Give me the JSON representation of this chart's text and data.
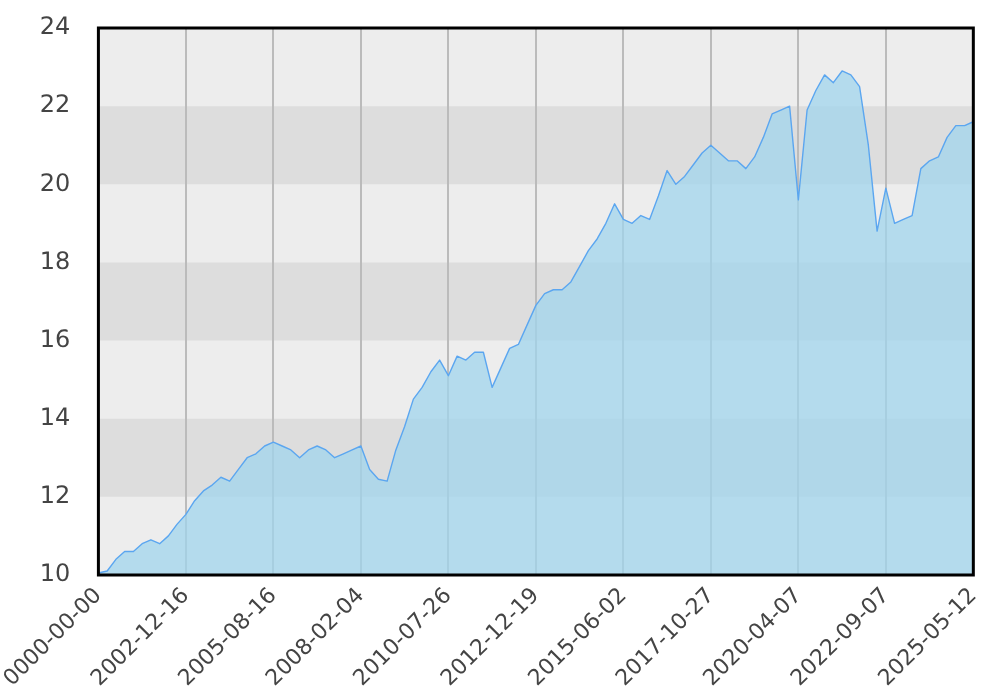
{
  "chart_data": {
    "type": "area",
    "categories": [
      "0000-00-00",
      null,
      null,
      null,
      null,
      null,
      null,
      null,
      null,
      null,
      "2002-12-16",
      null,
      null,
      null,
      null,
      null,
      null,
      null,
      null,
      null,
      "2005-08-16",
      null,
      null,
      null,
      null,
      null,
      null,
      null,
      null,
      null,
      "2008-02-04",
      null,
      null,
      null,
      null,
      null,
      null,
      null,
      null,
      null,
      "2010-07-26",
      null,
      null,
      null,
      null,
      null,
      null,
      null,
      null,
      null,
      "2012-12-19",
      null,
      null,
      null,
      null,
      null,
      null,
      null,
      null,
      null,
      "2015-06-02",
      null,
      null,
      null,
      null,
      null,
      null,
      null,
      null,
      null,
      "2017-10-27",
      null,
      null,
      null,
      null,
      null,
      null,
      null,
      null,
      null,
      "2020-04-07",
      null,
      null,
      null,
      null,
      null,
      null,
      null,
      null,
      null,
      "2022-09-07",
      null,
      null,
      null,
      null,
      null,
      null,
      null,
      null,
      null,
      "2025-05-12"
    ],
    "series": [
      {
        "color": "#5ba6f0",
        "values": [
          10.05,
          10.1,
          10.4,
          10.6,
          10.6,
          10.8,
          10.9,
          10.8,
          11.0,
          11.3,
          11.55,
          11.9,
          12.15,
          12.3,
          12.5,
          12.4,
          12.7,
          13.0,
          13.1,
          13.3,
          13.4,
          13.3,
          13.2,
          13.0,
          13.2,
          13.3,
          13.2,
          13.0,
          13.1,
          13.2,
          13.3,
          12.7,
          12.45,
          12.4,
          13.2,
          13.8,
          14.5,
          14.8,
          15.2,
          15.5,
          15.1,
          15.6,
          15.5,
          15.7,
          15.7,
          14.8,
          15.3,
          15.8,
          15.9,
          16.4,
          16.9,
          17.2,
          17.3,
          17.3,
          17.5,
          17.9,
          18.3,
          18.6,
          19.0,
          19.5,
          19.1,
          19.0,
          19.2,
          19.1,
          19.7,
          20.35,
          20.0,
          20.2,
          20.5,
          20.8,
          21.0,
          20.8,
          20.6,
          20.6,
          20.4,
          20.7,
          21.2,
          21.8,
          21.9,
          22.0,
          19.6,
          21.9,
          22.4,
          22.8,
          22.6,
          22.9,
          22.8,
          22.5,
          21.0,
          18.8,
          19.9,
          19.0,
          19.1,
          19.2,
          20.4,
          20.6,
          20.7,
          21.2,
          21.5,
          21.5,
          21.6
        ]
      }
    ],
    "ylim": [
      10,
      24
    ],
    "yticks": [
      10,
      12,
      14,
      16,
      18,
      20,
      22,
      24
    ],
    "grid": true,
    "legend": false,
    "marker": "none",
    "line_style": "solid"
  }
}
